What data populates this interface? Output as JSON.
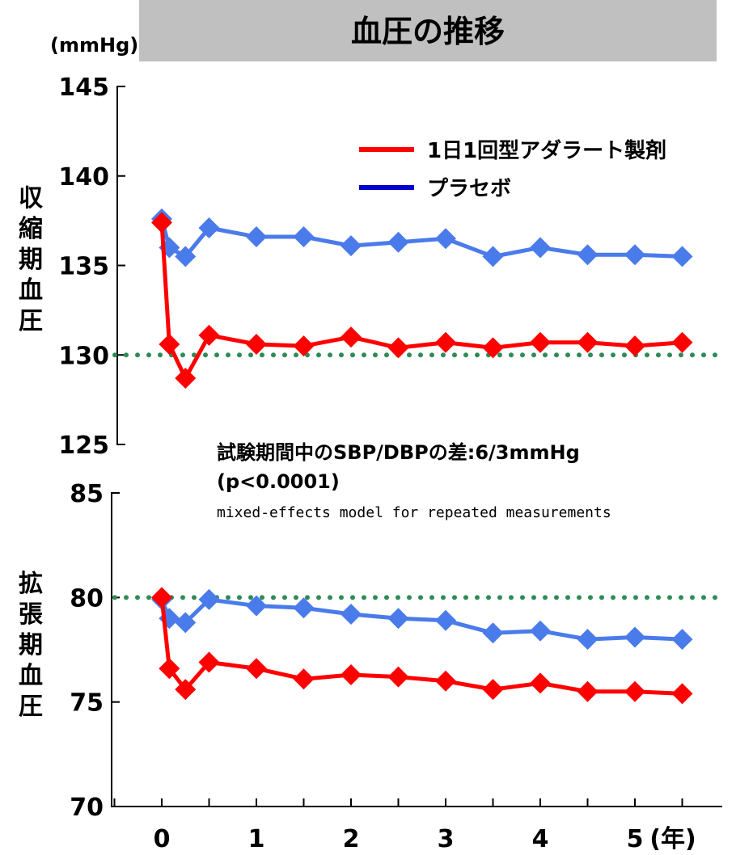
{
  "colors": {
    "adagrat": "#ff0000",
    "placebo": "#4a7bea",
    "placebo_legend": "#0000cc",
    "reference": "#2e8b57",
    "title_bg": "#c0c0c0"
  },
  "chart_data": [
    {
      "type": "line",
      "title": "血圧の推移",
      "unit": "(mmHg)",
      "ylabel": "収縮期血圧",
      "ylim": [
        125,
        145
      ],
      "yticks": [
        "145",
        "140",
        "135",
        "130",
        "125"
      ],
      "xlim": [
        -0.5,
        5.5
      ],
      "reference_line": 130,
      "legend": [
        "1日1回型アダラート製剤",
        "プラセボ"
      ],
      "legend_placement": "top-right",
      "series": [
        {
          "name": "1日1回型アダラート製剤",
          "color": "#ff0000",
          "x": [
            0,
            0.08,
            0.25,
            0.5,
            1,
            1.5,
            2,
            2.5,
            3,
            3.5,
            4,
            4.5,
            5,
            5.5
          ],
          "values": [
            137.4,
            130.6,
            128.7,
            131.1,
            130.6,
            130.5,
            131.0,
            130.4,
            130.7,
            130.4,
            130.7,
            130.7,
            130.5,
            130.7
          ]
        },
        {
          "name": "プラセボ",
          "color": "#4a7bea",
          "x": [
            0,
            0.08,
            0.25,
            0.5,
            1,
            1.5,
            2,
            2.5,
            3,
            3.5,
            4,
            4.5,
            5,
            5.5
          ],
          "values": [
            137.6,
            136.0,
            135.5,
            137.1,
            136.6,
            136.6,
            136.1,
            136.3,
            136.5,
            135.5,
            136.0,
            135.6,
            135.6,
            135.5
          ]
        }
      ]
    },
    {
      "type": "line",
      "ylabel": "拡張期血圧",
      "ylim": [
        70,
        85
      ],
      "yticks": [
        "85",
        "80",
        "75",
        "70"
      ],
      "xlim": [
        -0.5,
        5.5
      ],
      "xticks": [
        "0",
        "1",
        "2",
        "3",
        "4",
        "5"
      ],
      "xunit": "(年)",
      "reference_line": 80,
      "annotation": [
        "試験期間中のSBP/DBPの差:6/3mmHg",
        "(p<0.0001)",
        "mixed-effects model for repeated measurements"
      ],
      "series": [
        {
          "name": "1日1回型アダラート製剤",
          "color": "#ff0000",
          "x": [
            0,
            0.08,
            0.25,
            0.5,
            1,
            1.5,
            2,
            2.5,
            3,
            3.5,
            4,
            4.5,
            5,
            5.5
          ],
          "values": [
            80.0,
            76.6,
            75.6,
            76.9,
            76.6,
            76.1,
            76.3,
            76.2,
            76.0,
            75.6,
            75.9,
            75.5,
            75.5,
            75.4
          ]
        },
        {
          "name": "プラセボ",
          "color": "#4a7bea",
          "x": [
            0,
            0.08,
            0.25,
            0.5,
            1,
            1.5,
            2,
            2.5,
            3,
            3.5,
            4,
            4.5,
            5,
            5.5
          ],
          "values": [
            79.9,
            79.0,
            78.8,
            79.9,
            79.6,
            79.5,
            79.2,
            79.0,
            78.9,
            78.3,
            78.4,
            78.0,
            78.1,
            78.0
          ]
        }
      ]
    }
  ]
}
